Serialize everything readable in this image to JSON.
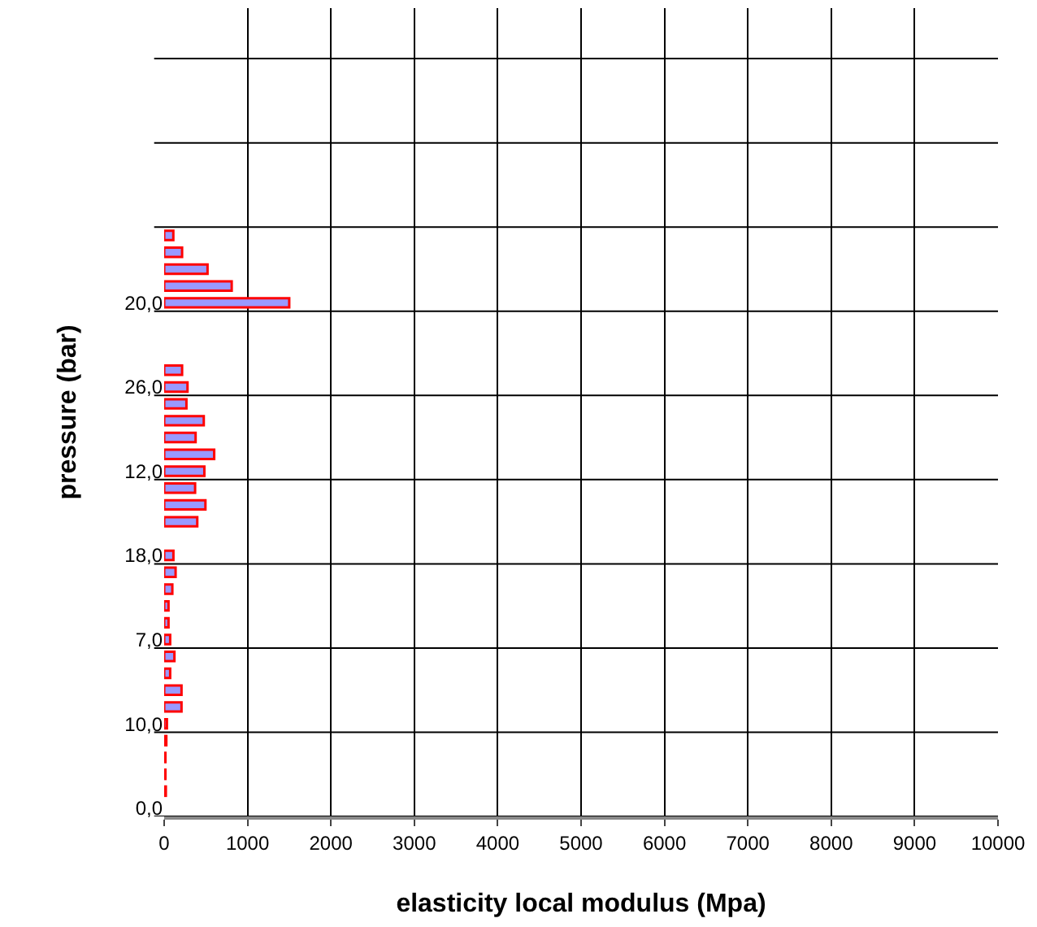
{
  "chart_data": {
    "type": "bar",
    "orientation": "horizontal",
    "xlabel": "elasticity local modulus (Mpa)",
    "ylabel": "pressure (bar)",
    "categories": [
      null,
      null,
      null,
      null,
      null,
      null,
      null,
      null,
      null,
      null,
      null,
      null,
      null,
      null,
      null,
      null,
      null,
      "20,0",
      null,
      null,
      null,
      null,
      "26,0",
      null,
      null,
      null,
      null,
      "12,0",
      null,
      null,
      null,
      null,
      "18,0",
      null,
      null,
      null,
      null,
      "7,0",
      null,
      null,
      null,
      null,
      "10,0",
      null,
      null,
      null,
      null,
      "0,0"
    ],
    "values": [
      null,
      null,
      null,
      null,
      null,
      null,
      null,
      null,
      null,
      null,
      null,
      null,
      null,
      110,
      215,
      520,
      810,
      1500,
      null,
      null,
      null,
      215,
      280,
      267,
      475,
      377,
      600,
      482,
      371,
      495,
      397,
      null,
      111,
      137,
      98,
      52,
      52,
      72,
      123,
      72,
      208,
      208,
      33,
      26,
      15,
      15,
      20,
      null
    ],
    "color": "#9999ff",
    "xlim": [
      0,
      10000
    ],
    "xticks": [
      0,
      1000,
      2000,
      3000,
      4000,
      5000,
      6000,
      7000,
      8000,
      9000,
      10000
    ],
    "grid": true,
    "legend": false
  }
}
